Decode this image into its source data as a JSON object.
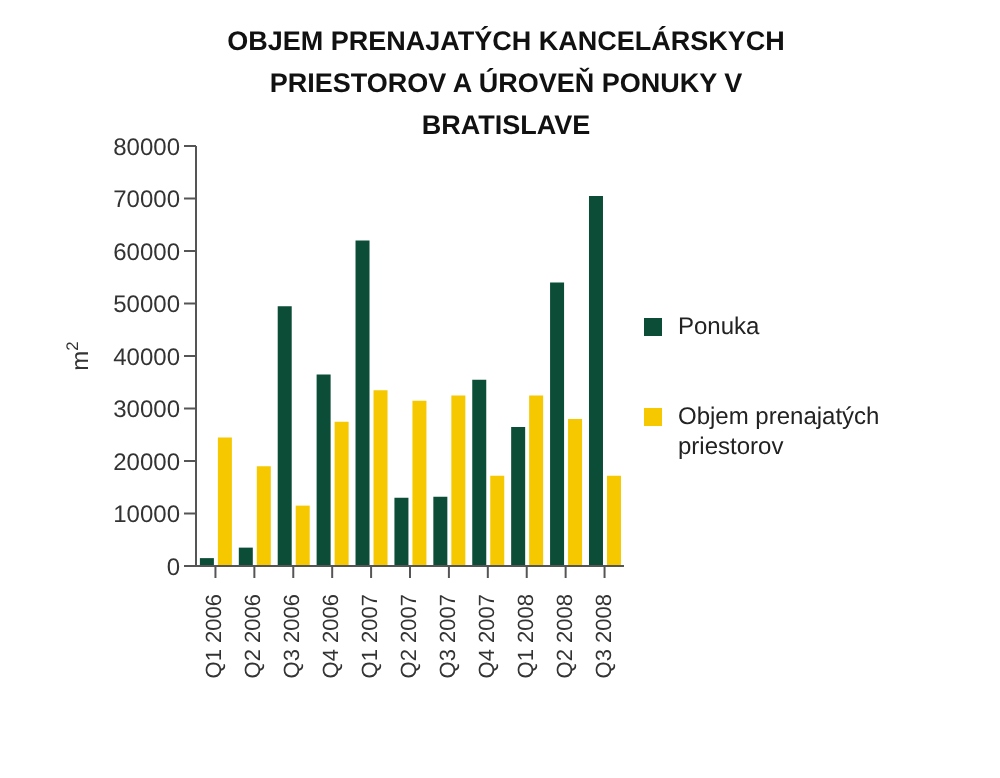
{
  "chart_data": {
    "type": "bar",
    "title": "OBJEM PRENAJATÝCH KANCELÁRSKYCH PRIESTOROV A ÚROVEŇ PONUKY V BRATISLAVE",
    "ylabel": "m$^{2}$",
    "categories": [
      "Q1 2006",
      "Q2 2006",
      "Q3 2006",
      "Q4 2006",
      "Q1 2007",
      "Q2 2007",
      "Q3 2007",
      "Q4 2007",
      "Q1 2008",
      "Q2 2008",
      "Q3 2008"
    ],
    "series": [
      {
        "name": "Ponuka",
        "color": "#0b4d36",
        "values": [
          1500,
          3500,
          49500,
          36500,
          62000,
          13000,
          13200,
          35500,
          26500,
          54000,
          70500
        ]
      },
      {
        "name": "Objem prenajatých priestorov",
        "color": "#f5c800",
        "values": [
          24500,
          19000,
          11500,
          27500,
          33500,
          31500,
          32500,
          17200,
          32500,
          28000,
          17200
        ]
      }
    ],
    "ylim": [
      0,
      80000
    ],
    "yticks": [
      0,
      10000,
      20000,
      30000,
      40000,
      50000,
      60000,
      70000,
      80000
    ],
    "grid": false,
    "legend": "right"
  }
}
